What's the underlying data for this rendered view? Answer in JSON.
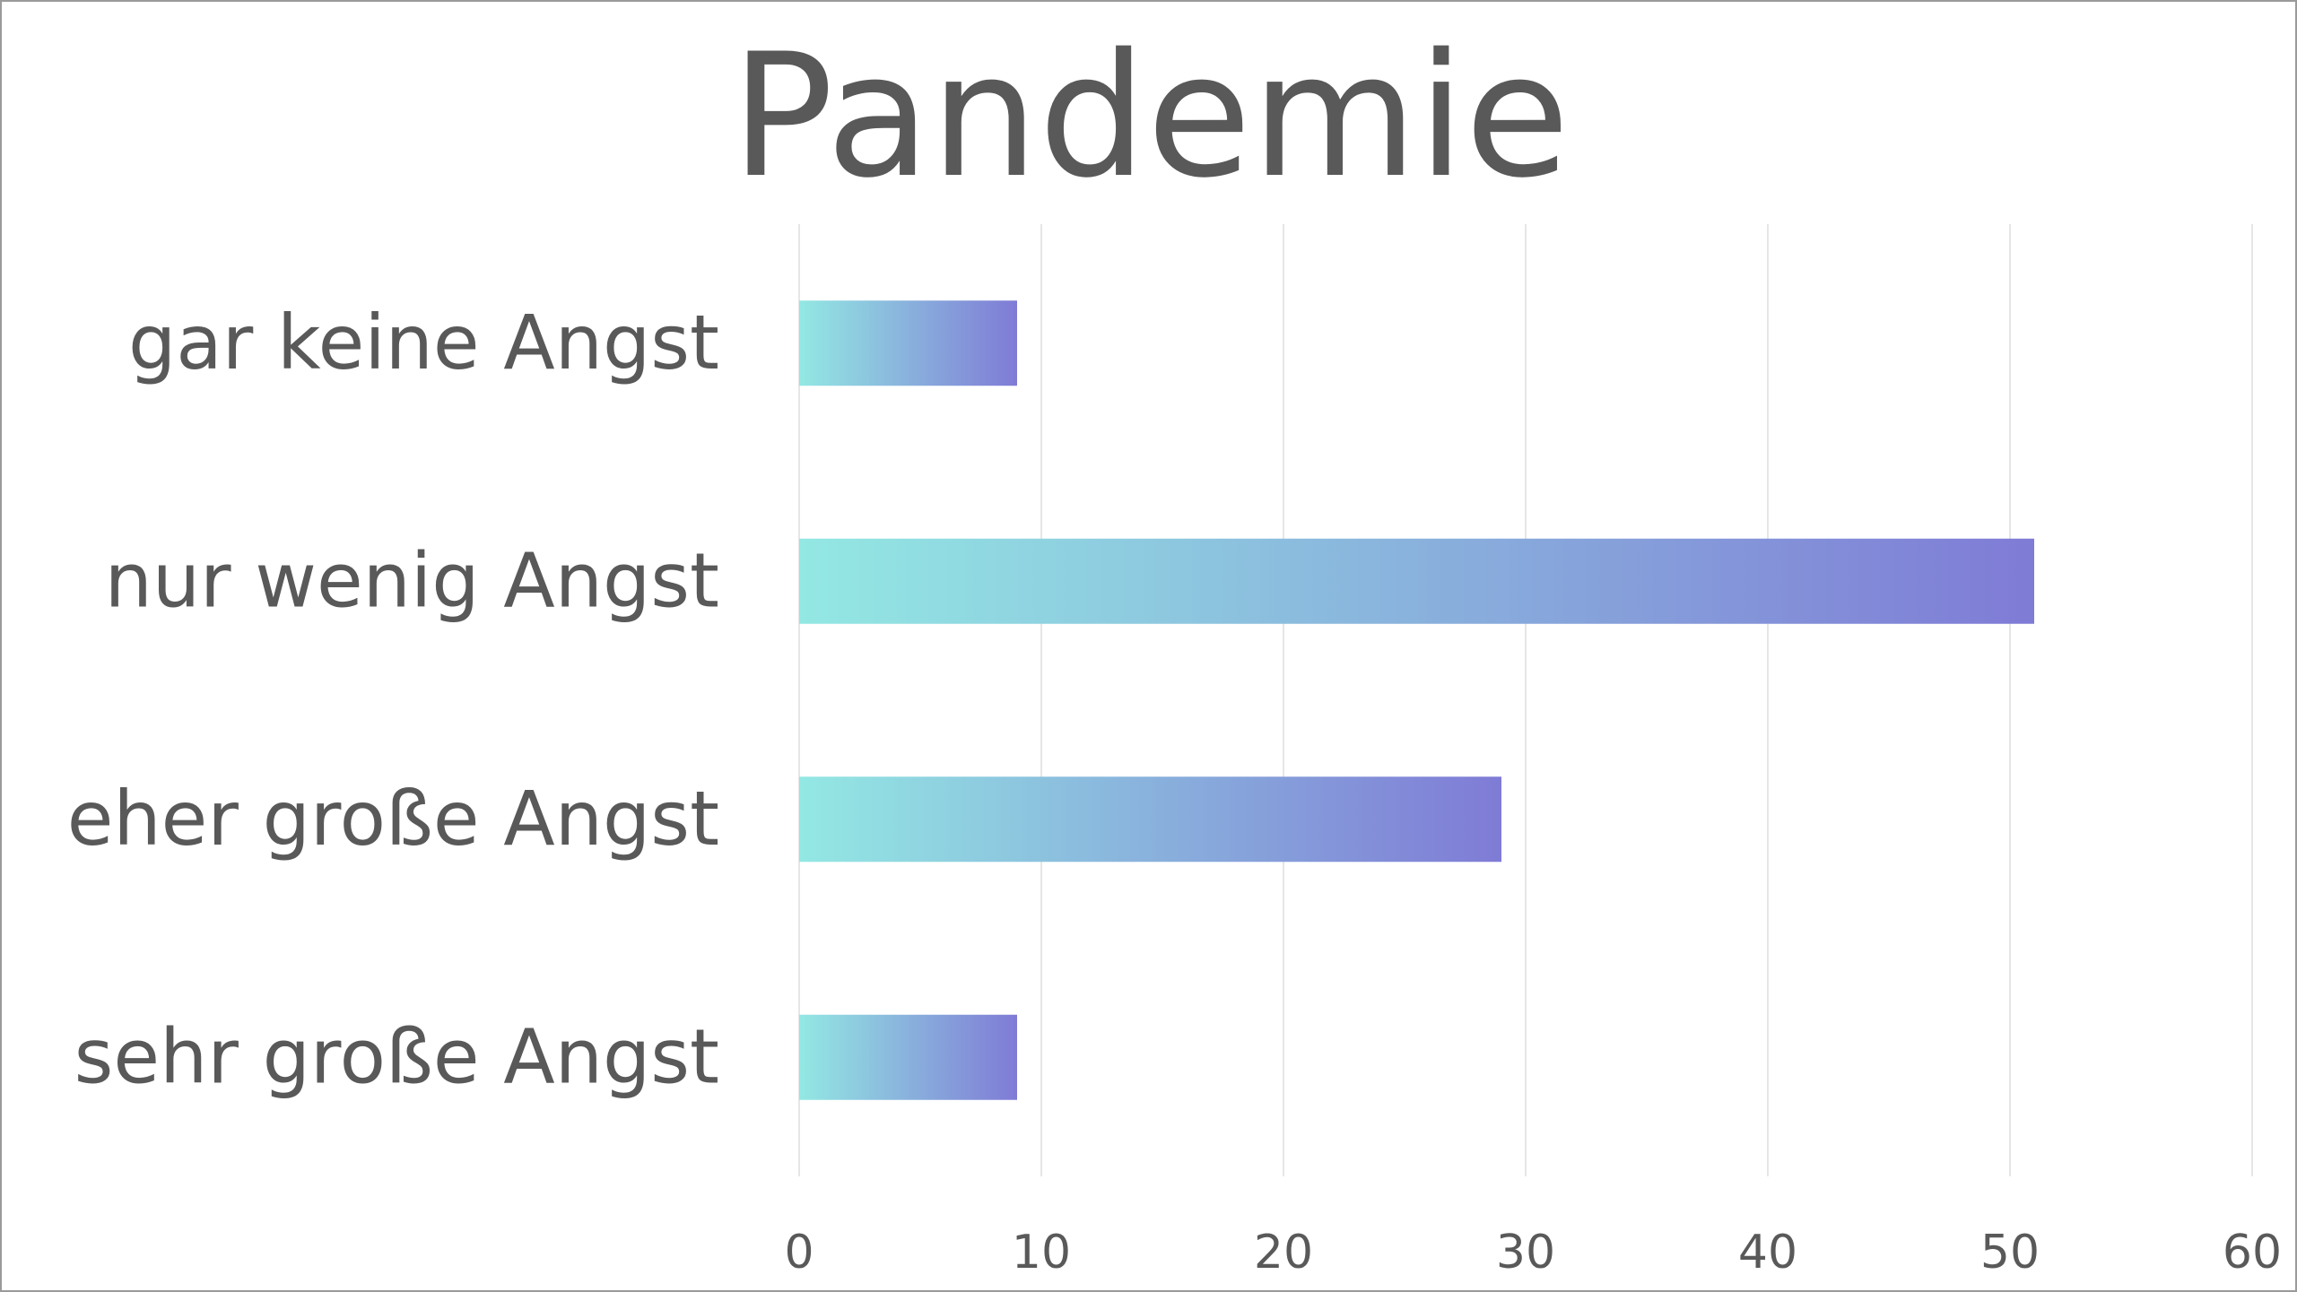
{
  "chart_data": {
    "type": "bar",
    "orientation": "horizontal",
    "title": "Pandemie",
    "xlabel": "",
    "ylabel": "",
    "categories": [
      "gar keine Angst",
      "nur wenig Angst",
      "eher große Angst",
      "sehr große Angst"
    ],
    "values": [
      9,
      51,
      29,
      9
    ],
    "xlim": [
      0,
      60
    ],
    "xticks": [
      0,
      10,
      20,
      30,
      40,
      50,
      60
    ],
    "grid": true,
    "legend": "none",
    "colors": {
      "bar_gradient_start": "#93E8E3",
      "bar_gradient_end": "#7F7BD6",
      "grid": "#E6E6E6",
      "text": "#595959"
    }
  }
}
